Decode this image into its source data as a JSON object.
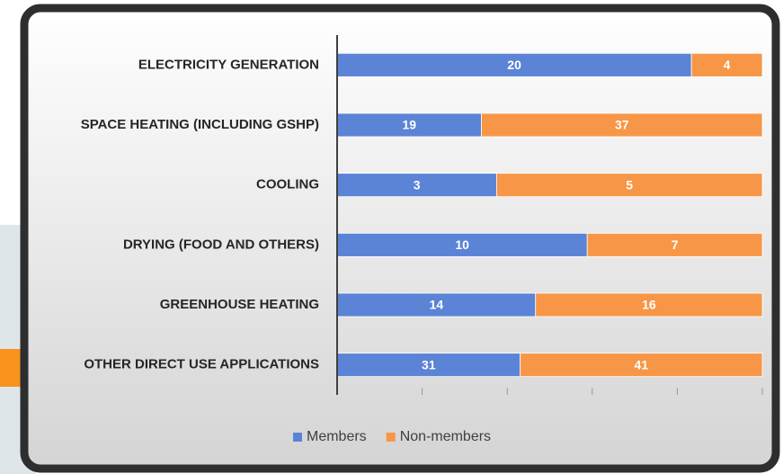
{
  "chart_data": {
    "type": "bar",
    "orientation": "horizontal",
    "stacked": "percent",
    "categories": [
      "ELECTRICITY GENERATION",
      "SPACE HEATING (INCLUDING GSHP)",
      "COOLING",
      "DRYING (FOOD AND OTHERS)",
      "GREENHOUSE HEATING",
      "OTHER DIRECT USE APPLICATIONS"
    ],
    "series": [
      {
        "name": "Members",
        "color": "#5b83d6",
        "values": [
          20,
          19,
          3,
          10,
          14,
          31
        ]
      },
      {
        "name": "Non-members",
        "color": "#f79646",
        "values": [
          4,
          37,
          5,
          7,
          16,
          41
        ]
      }
    ],
    "xlim": [
      0,
      100
    ],
    "xticks": [
      0,
      20,
      40,
      60,
      80,
      100
    ],
    "legend": "bottom"
  }
}
